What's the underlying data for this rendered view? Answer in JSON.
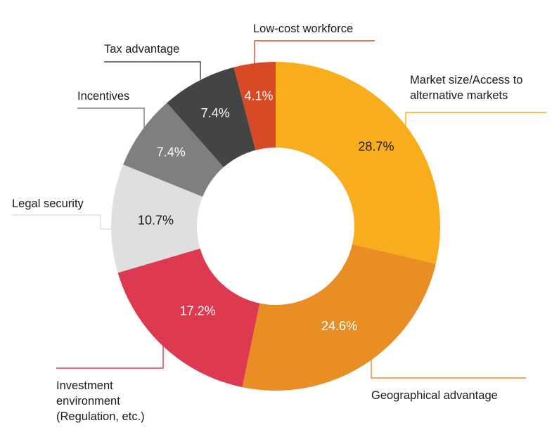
{
  "chart_data": {
    "type": "pie",
    "title": "",
    "labels_unit": "%",
    "slices": [
      {
        "label": "Market size/Access to alternative markets",
        "label_lines": [
          "Market size/Access to",
          "alternative markets"
        ],
        "value": 28.7,
        "value_label": "28.7%",
        "color": "#f8ad1c"
      },
      {
        "label": "Geographical advantage",
        "label_lines": [
          "Geographical advantage"
        ],
        "value": 24.6,
        "value_label": "24.6%",
        "color": "#e88e25"
      },
      {
        "label": "Investment environment (Regulation, etc.)",
        "label_lines": [
          "Investment",
          "environment",
          "(Regulation, etc.)"
        ],
        "value": 17.2,
        "value_label": "17.2%",
        "color": "#dd3a52"
      },
      {
        "label": "Legal security",
        "label_lines": [
          "Legal security"
        ],
        "value": 10.7,
        "value_label": "10.7%",
        "color": "#dfdfdf"
      },
      {
        "label": "Incentives",
        "label_lines": [
          "Incentives"
        ],
        "value": 7.4,
        "value_label": "7.4%",
        "color": "#7f7f7f"
      },
      {
        "label": "Tax advantage",
        "label_lines": [
          "Tax advantage"
        ],
        "value": 7.4,
        "value_label": "7.4%",
        "color": "#444444"
      },
      {
        "label": "Low-cost workforce",
        "label_lines": [
          "Low-cost workforce"
        ],
        "value": 4.1,
        "value_label": "4.1%",
        "color": "#d64a25"
      }
    ]
  }
}
